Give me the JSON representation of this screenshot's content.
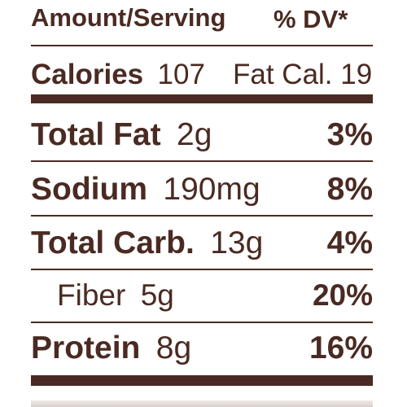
{
  "header": {
    "amount_serving": "Amount/Serving",
    "dv": "% DV*"
  },
  "calories": {
    "label": "Calories",
    "value": "107",
    "fat_cal": "Fat Cal. 19"
  },
  "nutrients": [
    {
      "name": "Total Fat",
      "amount": "2g",
      "dv": "3%"
    },
    {
      "name": "Sodium",
      "amount": "190mg",
      "dv": "8%"
    },
    {
      "name": "Total Carb.",
      "amount": "13g",
      "dv": "4%"
    },
    {
      "name": "Fiber",
      "amount": "5g",
      "dv": "20%"
    },
    {
      "name": "Protein",
      "amount": "8g",
      "dv": "16%"
    }
  ],
  "colors": {
    "text": "#4a2a22",
    "background": "#ffffff"
  }
}
